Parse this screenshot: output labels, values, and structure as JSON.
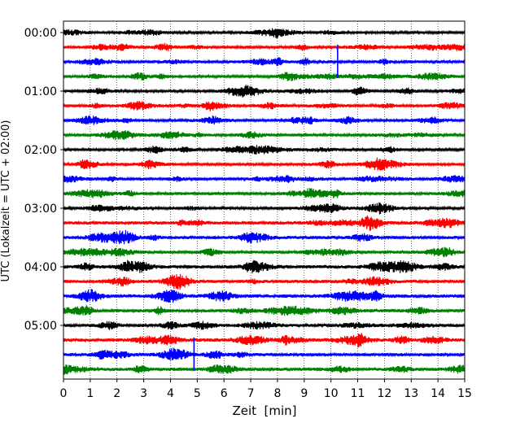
{
  "chart_data": {
    "type": "line",
    "subtype": "helicorder",
    "xlabel": "Zeit  [min]",
    "ylabel": "UTC (Lokalzeit = UTC + 02:00)",
    "xlim": [
      0,
      15
    ],
    "x_ticks": [
      "0",
      "1",
      "2",
      "3",
      "4",
      "5",
      "6",
      "7",
      "8",
      "9",
      "10",
      "11",
      "12",
      "13",
      "14",
      "15"
    ],
    "y_ticks": [
      "00:00",
      "01:00",
      "02:00",
      "03:00",
      "04:00",
      "05:00"
    ],
    "grid": "vertical-dotted",
    "trace_interval_minutes": 15,
    "trace_colors": [
      "#000000",
      "#ff0000",
      "#0000ff",
      "#008000"
    ],
    "traces": [
      {
        "start": "00:00",
        "color": "#000000",
        "amplitude": 0.9
      },
      {
        "start": "00:15",
        "color": "#ff0000",
        "amplitude": 1.0
      },
      {
        "start": "00:30",
        "color": "#0000ff",
        "amplitude": 1.1
      },
      {
        "start": "00:45",
        "color": "#008000",
        "amplitude": 1.0
      },
      {
        "start": "01:00",
        "color": "#000000",
        "amplitude": 0.9
      },
      {
        "start": "01:15",
        "color": "#ff0000",
        "amplitude": 1.0
      },
      {
        "start": "01:30",
        "color": "#0000ff",
        "amplitude": 1.0
      },
      {
        "start": "01:45",
        "color": "#008000",
        "amplitude": 1.0
      },
      {
        "start": "02:00",
        "color": "#000000",
        "amplitude": 1.0
      },
      {
        "start": "02:15",
        "color": "#ff0000",
        "amplitude": 1.0
      },
      {
        "start": "02:30",
        "color": "#0000ff",
        "amplitude": 1.1
      },
      {
        "start": "02:45",
        "color": "#008000",
        "amplitude": 1.1
      },
      {
        "start": "03:00",
        "color": "#000000",
        "amplitude": 1.0
      },
      {
        "start": "03:15",
        "color": "#ff0000",
        "amplitude": 1.2
      },
      {
        "start": "03:30",
        "color": "#0000ff",
        "amplitude": 1.2
      },
      {
        "start": "03:45",
        "color": "#008000",
        "amplitude": 1.1
      },
      {
        "start": "04:00",
        "color": "#000000",
        "amplitude": 1.3
      },
      {
        "start": "04:15",
        "color": "#ff0000",
        "amplitude": 1.2
      },
      {
        "start": "04:30",
        "color": "#0000ff",
        "amplitude": 1.3
      },
      {
        "start": "04:45",
        "color": "#008000",
        "amplitude": 1.2
      },
      {
        "start": "05:00",
        "color": "#000000",
        "amplitude": 1.2
      },
      {
        "start": "05:15",
        "color": "#ff0000",
        "amplitude": 1.3
      },
      {
        "start": "05:30",
        "color": "#0000ff",
        "amplitude": 1.2
      },
      {
        "start": "05:45",
        "color": "#008000",
        "amplitude": 1.2
      }
    ],
    "events": [
      {
        "trace_start": "00:15",
        "minute": 10.25,
        "color": "#0000ff",
        "direction": "down"
      },
      {
        "trace_start": "05:15",
        "minute": 4.88,
        "color": "#0000ff",
        "direction": "down"
      }
    ]
  }
}
